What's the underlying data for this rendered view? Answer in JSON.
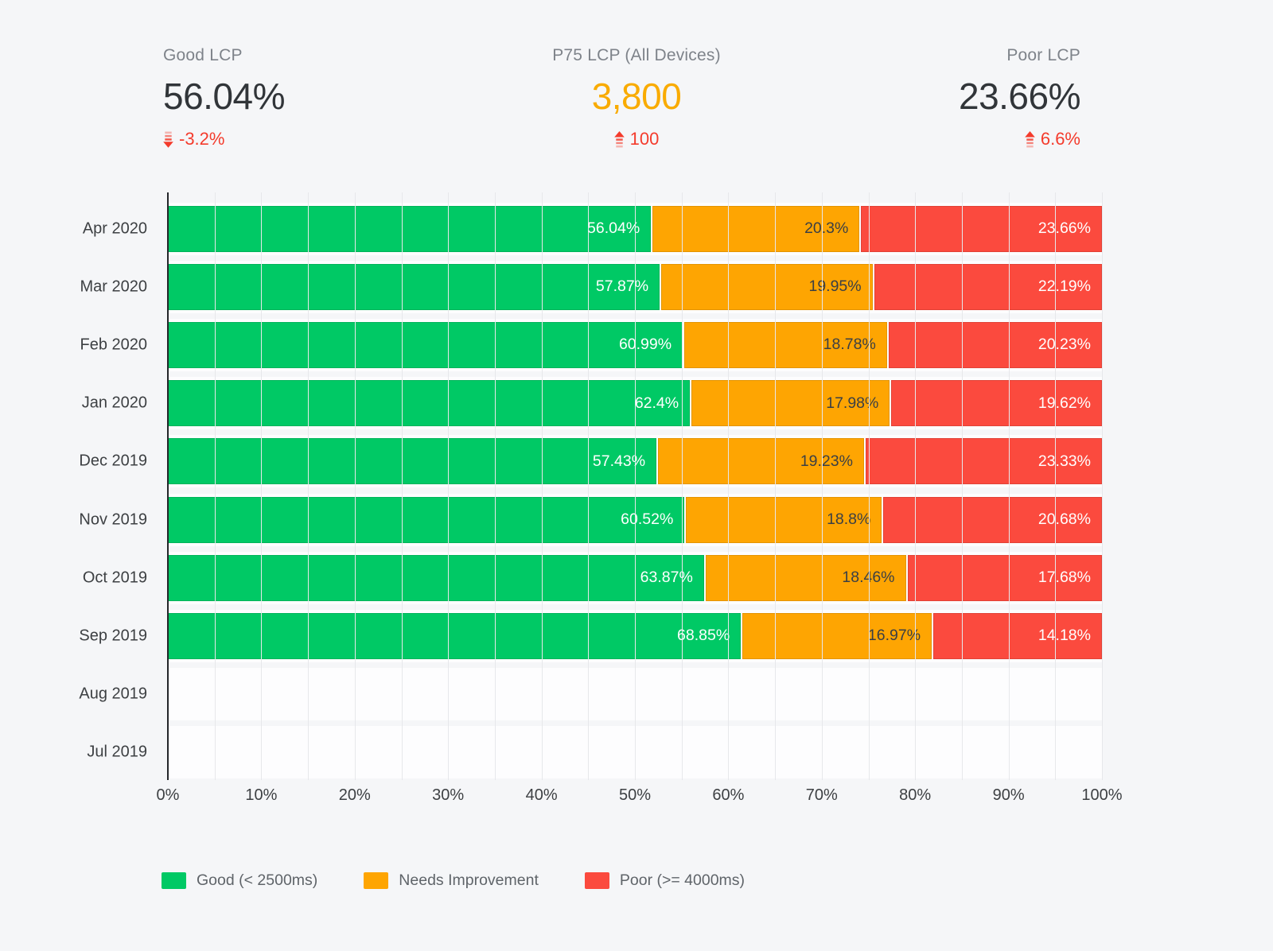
{
  "page": {
    "background": "#f5f6f8"
  },
  "stats": [
    {
      "label": "Good LCP",
      "value": "56.04%",
      "value_color": "#313539",
      "change": "-3.2%",
      "change_direction": "down",
      "change_color": "#f43b2c"
    },
    {
      "label": "P75 LCP (All Devices)",
      "value": "3,800",
      "value_color": "#f9ab00",
      "change": "100",
      "change_direction": "up",
      "change_color": "#f43b2c"
    },
    {
      "label": "Poor LCP",
      "value": "23.66%",
      "value_color": "#313539",
      "change": "6.6%",
      "change_direction": "up",
      "change_color": "#f43b2c"
    }
  ],
  "chart_data": {
    "type": "bar",
    "orientation": "horizontal",
    "stacked": true,
    "categories": [
      "Apr 2020",
      "Mar 2020",
      "Feb 2020",
      "Jan 2020",
      "Dec 2019",
      "Nov 2019",
      "Oct 2019",
      "Sep 2019",
      "Aug 2019",
      "Jul 2019"
    ],
    "series": [
      {
        "name": "Good (< 2500ms)",
        "color": "#00c965",
        "label_color": "#ffffff",
        "values": [
          56.04,
          57.87,
          60.99,
          62.4,
          57.43,
          60.52,
          63.87,
          68.85,
          null,
          null
        ]
      },
      {
        "name": "Needs Improvement",
        "color": "#fea502",
        "label_color": "#3a3f45",
        "values": [
          20.3,
          19.95,
          18.78,
          17.98,
          19.23,
          18.8,
          18.46,
          16.97,
          null,
          null
        ]
      },
      {
        "name": "Poor (>= 4000ms)",
        "color": "#fb4a3e",
        "label_color": "#ffffff",
        "values": [
          23.66,
          22.19,
          20.23,
          19.62,
          23.33,
          20.68,
          17.68,
          14.18,
          null,
          null
        ]
      }
    ],
    "value_suffix": "%",
    "xlim": [
      0,
      100
    ],
    "x_ticks": [
      "0%",
      "10%",
      "20%",
      "30%",
      "40%",
      "50%",
      "60%",
      "70%",
      "80%",
      "90%",
      "100%"
    ],
    "minor_grid_step_percent": 5,
    "grid": "vertical",
    "legend_position": "bottom"
  }
}
